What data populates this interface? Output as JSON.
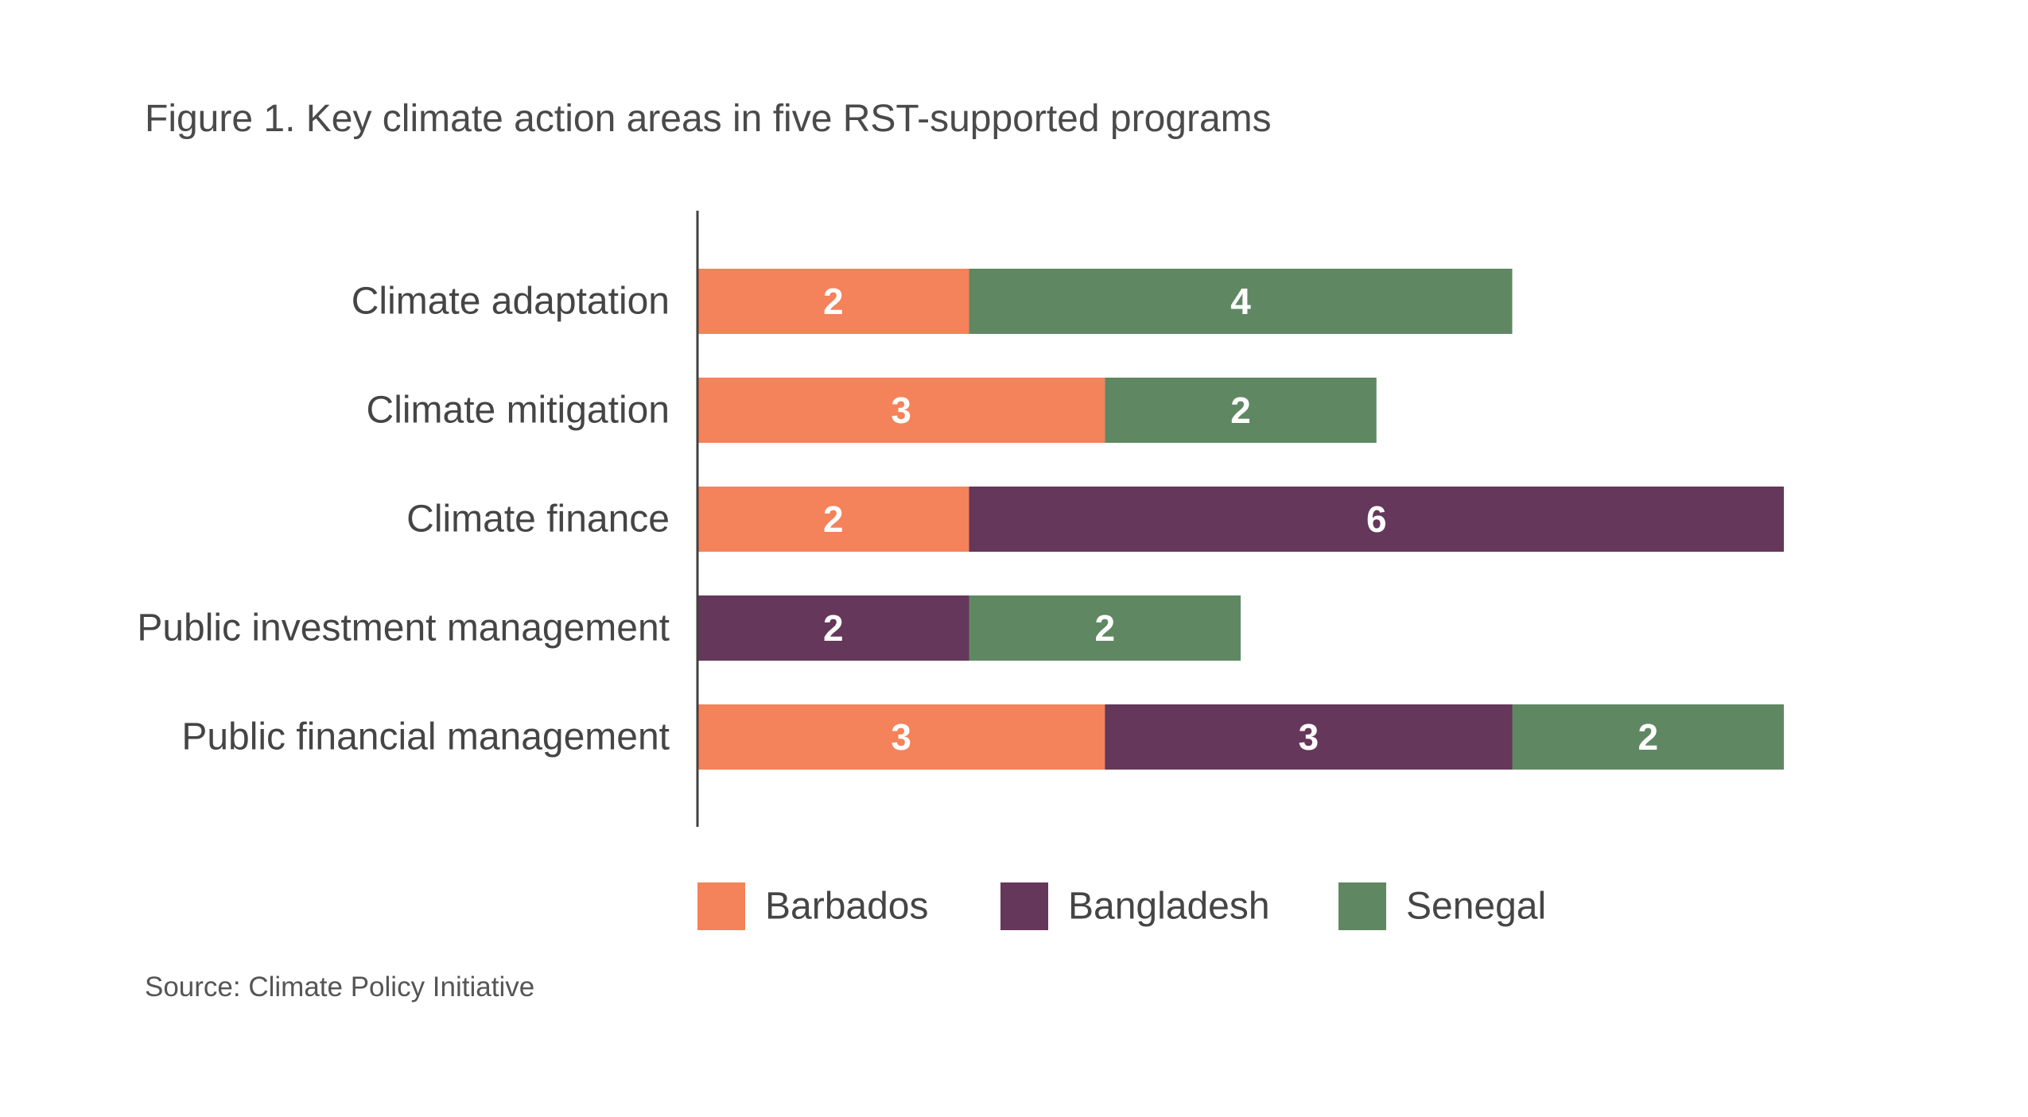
{
  "chart_data": {
    "type": "bar",
    "orientation": "horizontal",
    "stacked": true,
    "title": "Figure 1. Key climate action areas in five RST-supported programs",
    "source": "Source: Climate Policy Initiative",
    "categories": [
      "Climate adaptation",
      "Climate mitigation",
      "Climate finance",
      "Public investment management",
      "Public financial management"
    ],
    "series": [
      {
        "name": "Barbados",
        "color": "#f4825a",
        "values": [
          2,
          3,
          2,
          0,
          3
        ]
      },
      {
        "name": "Bangladesh",
        "color": "#65375a",
        "values": [
          0,
          0,
          6,
          2,
          3
        ]
      },
      {
        "name": "Senegal",
        "color": "#5f8862",
        "values": [
          4,
          2,
          0,
          2,
          2
        ]
      }
    ],
    "xlim": [
      0,
      8
    ],
    "grid": false,
    "legend_position": "bottom"
  }
}
